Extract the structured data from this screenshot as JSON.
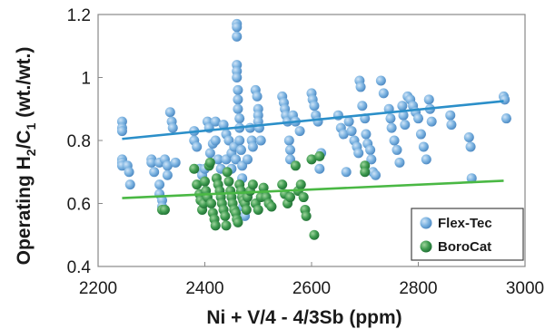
{
  "chart_data": {
    "type": "scatter",
    "xlabel": "Ni + V/4 - 4/3Sb (ppm)",
    "ylabel_parts": {
      "prefix": "Operating H",
      "sub1": "2",
      "mid": "/C",
      "sub2": "1",
      "suffix": " (wt./wt.)"
    },
    "xlim": [
      2200,
      3000
    ],
    "ylim": [
      0.4,
      1.2
    ],
    "x_ticks": [
      "2200",
      "2400",
      "2600",
      "2800",
      "3000"
    ],
    "y_ticks": [
      "0.4",
      "0.6",
      "0.8",
      "1",
      "1.2"
    ],
    "legend_position": "bottom-right",
    "series": [
      {
        "name": "Flex-Tec",
        "color": "#6fa8dc",
        "trend_color": "#2b8fc9",
        "trend": {
          "x": [
            2245,
            2960
          ],
          "y": [
            0.805,
            0.925
          ]
        },
        "points": [
          [
            2245,
            0.86
          ],
          [
            2245,
            0.84
          ],
          [
            2245,
            0.83
          ],
          [
            2245,
            0.74
          ],
          [
            2245,
            0.73
          ],
          [
            2245,
            0.72
          ],
          [
            2255,
            0.72
          ],
          [
            2258,
            0.7
          ],
          [
            2260,
            0.66
          ],
          [
            2300,
            0.74
          ],
          [
            2300,
            0.73
          ],
          [
            2305,
            0.7
          ],
          [
            2315,
            0.73
          ],
          [
            2315,
            0.66
          ],
          [
            2315,
            0.63
          ],
          [
            2320,
            0.61
          ],
          [
            2320,
            0.59
          ],
          [
            2325,
            0.74
          ],
          [
            2330,
            0.72
          ],
          [
            2330,
            0.69
          ],
          [
            2335,
            0.89
          ],
          [
            2338,
            0.86
          ],
          [
            2340,
            0.84
          ],
          [
            2345,
            0.73
          ],
          [
            2380,
            0.83
          ],
          [
            2380,
            0.8
          ],
          [
            2385,
            0.78
          ],
          [
            2390,
            0.71
          ],
          [
            2395,
            0.69
          ],
          [
            2400,
            0.71
          ],
          [
            2405,
            0.86
          ],
          [
            2408,
            0.84
          ],
          [
            2410,
            0.76
          ],
          [
            2415,
            0.79
          ],
          [
            2420,
            0.86
          ],
          [
            2420,
            0.8
          ],
          [
            2425,
            0.74
          ],
          [
            2430,
            0.71
          ],
          [
            2435,
            0.85
          ],
          [
            2440,
            0.82
          ],
          [
            2440,
            0.74
          ],
          [
            2445,
            0.8
          ],
          [
            2450,
            0.76
          ],
          [
            2450,
            0.71
          ],
          [
            2455,
            0.78
          ],
          [
            2458,
            0.74
          ],
          [
            2460,
            1.17
          ],
          [
            2460,
            1.16
          ],
          [
            2460,
            1.13
          ],
          [
            2460,
            1.04
          ],
          [
            2460,
            1.02
          ],
          [
            2460,
            1.0
          ],
          [
            2462,
            0.96
          ],
          [
            2462,
            0.93
          ],
          [
            2462,
            0.9
          ],
          [
            2465,
            0.87
          ],
          [
            2465,
            0.84
          ],
          [
            2465,
            0.8
          ],
          [
            2468,
            0.77
          ],
          [
            2470,
            0.72
          ],
          [
            2470,
            0.68
          ],
          [
            2470,
            0.62
          ],
          [
            2472,
            0.59
          ],
          [
            2475,
            0.56
          ],
          [
            2480,
            0.74
          ],
          [
            2485,
            0.84
          ],
          [
            2488,
            0.8
          ],
          [
            2490,
            0.78
          ],
          [
            2495,
            0.96
          ],
          [
            2498,
            0.94
          ],
          [
            2500,
            0.9
          ],
          [
            2500,
            0.88
          ],
          [
            2500,
            0.86
          ],
          [
            2502,
            0.84
          ],
          [
            2505,
            0.8
          ],
          [
            2545,
            0.94
          ],
          [
            2548,
            0.92
          ],
          [
            2550,
            0.9
          ],
          [
            2552,
            0.88
          ],
          [
            2555,
            0.86
          ],
          [
            2558,
            0.8
          ],
          [
            2560,
            0.77
          ],
          [
            2560,
            0.74
          ],
          [
            2565,
            0.88
          ],
          [
            2570,
            0.86
          ],
          [
            2578,
            0.83
          ],
          [
            2600,
            0.95
          ],
          [
            2602,
            0.93
          ],
          [
            2605,
            0.91
          ],
          [
            2608,
            0.88
          ],
          [
            2612,
            0.86
          ],
          [
            2615,
            0.71
          ],
          [
            2618,
            0.76
          ],
          [
            2650,
            0.88
          ],
          [
            2655,
            0.84
          ],
          [
            2660,
            0.82
          ],
          [
            2665,
            0.7
          ],
          [
            2670,
            0.86
          ],
          [
            2675,
            0.83
          ],
          [
            2680,
            0.8
          ],
          [
            2685,
            0.78
          ],
          [
            2688,
            0.76
          ],
          [
            2690,
            0.99
          ],
          [
            2692,
            0.97
          ],
          [
            2695,
            0.91
          ],
          [
            2700,
            0.87
          ],
          [
            2702,
            0.82
          ],
          [
            2705,
            0.79
          ],
          [
            2710,
            0.77
          ],
          [
            2712,
            0.74
          ],
          [
            2715,
            0.7
          ],
          [
            2720,
            0.69
          ],
          [
            2730,
            0.99
          ],
          [
            2735,
            0.95
          ],
          [
            2745,
            0.9
          ],
          [
            2748,
            0.87
          ],
          [
            2750,
            0.84
          ],
          [
            2755,
            0.8
          ],
          [
            2760,
            0.77
          ],
          [
            2765,
            0.73
          ],
          [
            2770,
            0.91
          ],
          [
            2772,
            0.88
          ],
          [
            2775,
            0.85
          ],
          [
            2780,
            0.94
          ],
          [
            2785,
            0.93
          ],
          [
            2790,
            0.91
          ],
          [
            2795,
            0.89
          ],
          [
            2800,
            0.87
          ],
          [
            2805,
            0.82
          ],
          [
            2810,
            0.78
          ],
          [
            2815,
            0.74
          ],
          [
            2820,
            0.93
          ],
          [
            2822,
            0.9
          ],
          [
            2825,
            0.86
          ],
          [
            2860,
            0.88
          ],
          [
            2862,
            0.85
          ],
          [
            2895,
            0.81
          ],
          [
            2898,
            0.78
          ],
          [
            2900,
            0.68
          ],
          [
            2960,
            0.94
          ],
          [
            2962,
            0.93
          ],
          [
            2965,
            0.87
          ]
        ]
      },
      {
        "name": "BoroCat",
        "color": "#3d9a52",
        "trend_color": "#4ab844",
        "trend": {
          "x": [
            2245,
            2960
          ],
          "y": [
            0.617,
            0.672
          ]
        },
        "points": [
          [
            2320,
            0.58
          ],
          [
            2325,
            0.58
          ],
          [
            2380,
            0.71
          ],
          [
            2385,
            0.66
          ],
          [
            2390,
            0.63
          ],
          [
            2392,
            0.61
          ],
          [
            2395,
            0.58
          ],
          [
            2398,
            0.6
          ],
          [
            2400,
            0.67
          ],
          [
            2402,
            0.64
          ],
          [
            2405,
            0.62
          ],
          [
            2408,
            0.72
          ],
          [
            2410,
            0.73
          ],
          [
            2412,
            0.6
          ],
          [
            2415,
            0.57
          ],
          [
            2418,
            0.55
          ],
          [
            2420,
            0.53
          ],
          [
            2422,
            0.68
          ],
          [
            2425,
            0.66
          ],
          [
            2428,
            0.64
          ],
          [
            2430,
            0.62
          ],
          [
            2432,
            0.6
          ],
          [
            2435,
            0.58
          ],
          [
            2438,
            0.56
          ],
          [
            2440,
            0.53
          ],
          [
            2442,
            0.7
          ],
          [
            2445,
            0.67
          ],
          [
            2448,
            0.64
          ],
          [
            2450,
            0.62
          ],
          [
            2452,
            0.6
          ],
          [
            2455,
            0.58
          ],
          [
            2458,
            0.57
          ],
          [
            2460,
            0.55
          ],
          [
            2462,
            0.54
          ],
          [
            2465,
            0.66
          ],
          [
            2468,
            0.64
          ],
          [
            2470,
            0.62
          ],
          [
            2472,
            0.61
          ],
          [
            2475,
            0.6
          ],
          [
            2478,
            0.58
          ],
          [
            2480,
            0.62
          ],
          [
            2485,
            0.64
          ],
          [
            2490,
            0.66
          ],
          [
            2495,
            0.6
          ],
          [
            2500,
            0.58
          ],
          [
            2505,
            0.62
          ],
          [
            2510,
            0.65
          ],
          [
            2515,
            0.62
          ],
          [
            2520,
            0.6
          ],
          [
            2525,
            0.59
          ],
          [
            2545,
            0.66
          ],
          [
            2550,
            0.63
          ],
          [
            2555,
            0.6
          ],
          [
            2560,
            0.62
          ],
          [
            2570,
            0.72
          ],
          [
            2575,
            0.64
          ],
          [
            2580,
            0.66
          ],
          [
            2585,
            0.62
          ],
          [
            2588,
            0.58
          ],
          [
            2590,
            0.56
          ],
          [
            2600,
            0.74
          ],
          [
            2605,
            0.5
          ],
          [
            2615,
            0.75
          ],
          [
            2700,
            0.72
          ],
          [
            2700,
            0.7
          ]
        ]
      }
    ]
  }
}
